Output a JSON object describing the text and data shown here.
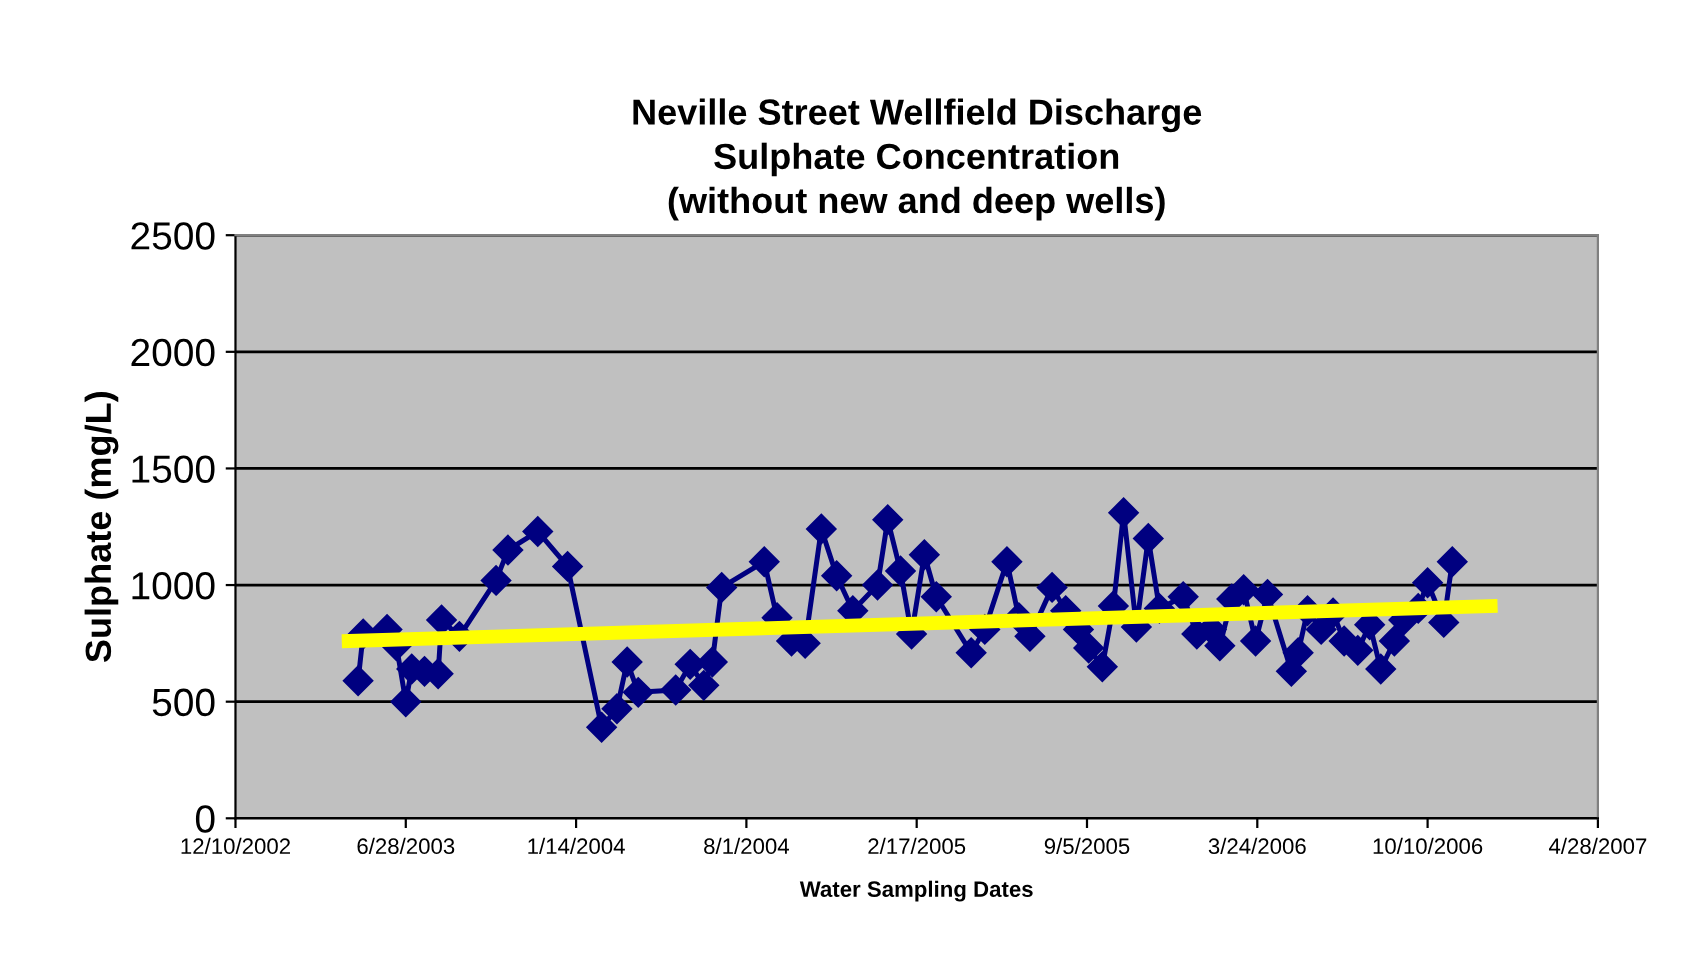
{
  "chart_data": {
    "type": "line",
    "title": "Neville Street Wellfield Discharge\nSulphate Concentration\n(without new and deep wells)",
    "xlabel": "Water Sampling Dates",
    "ylabel": "Sulphate (mg/L)",
    "xlim": [
      "2002-12-10",
      "2007-04-28"
    ],
    "xticks": [
      {
        "value": "2002-12-10",
        "label": "12/10/2002"
      },
      {
        "value": "2003-06-28",
        "label": "6/28/2003"
      },
      {
        "value": "2004-01-14",
        "label": "1/14/2004"
      },
      {
        "value": "2004-08-01",
        "label": "8/1/2004"
      },
      {
        "value": "2005-02-17",
        "label": "2/17/2005"
      },
      {
        "value": "2005-09-05",
        "label": "9/5/2005"
      },
      {
        "value": "2006-03-24",
        "label": "3/24/2006"
      },
      {
        "value": "2006-10-10",
        "label": "10/10/2006"
      },
      {
        "value": "2007-04-28",
        "label": "4/28/2007"
      }
    ],
    "ylim": [
      0,
      2500
    ],
    "yticks": [
      0,
      500,
      1000,
      1500,
      2000,
      2500
    ],
    "grid": "y",
    "legend": false,
    "series": [
      {
        "color": "#000080",
        "marker": "diamond",
        "line_style": "solid",
        "x": [
          "2003-05-03",
          "2003-05-09",
          "2003-06-06",
          "2003-06-17",
          "2003-06-28",
          "2003-07-05",
          "2003-07-20",
          "2003-08-05",
          "2003-08-09",
          "2003-08-30",
          "2003-10-12",
          "2003-10-26",
          "2003-11-30",
          "2004-01-04",
          "2004-02-13",
          "2004-03-02",
          "2004-03-14",
          "2004-03-27",
          "2004-05-10",
          "2004-05-27",
          "2004-06-12",
          "2004-06-22",
          "2004-07-03",
          "2004-08-22",
          "2004-09-06",
          "2004-09-23",
          "2004-10-09",
          "2004-10-28",
          "2004-11-15",
          "2004-12-04",
          "2005-01-02",
          "2005-01-14",
          "2005-01-29",
          "2005-02-11",
          "2005-02-26",
          "2005-03-12",
          "2005-04-22",
          "2005-05-08",
          "2005-06-03",
          "2005-06-17",
          "2005-06-30",
          "2005-07-26",
          "2005-08-11",
          "2005-08-26",
          "2005-09-07",
          "2005-09-23",
          "2005-10-06",
          "2005-10-18",
          "2005-11-02",
          "2005-11-16",
          "2005-11-29",
          "2005-12-27",
          "2006-01-12",
          "2006-01-29",
          "2006-02-08",
          "2006-02-22",
          "2006-03-08",
          "2006-03-22",
          "2006-04-05",
          "2006-05-03",
          "2006-05-11",
          "2006-05-22",
          "2006-06-07",
          "2006-06-21",
          "2006-07-04",
          "2006-07-20",
          "2006-08-03",
          "2006-08-16",
          "2006-09-01",
          "2006-09-12",
          "2006-09-29",
          "2006-10-10",
          "2006-10-29",
          "2006-11-08"
        ],
        "values": [
          590,
          790,
          810,
          740,
          500,
          640,
          630,
          620,
          850,
          780,
          1020,
          1150,
          1230,
          1080,
          390,
          470,
          670,
          540,
          550,
          660,
          570,
          670,
          990,
          1100,
          860,
          760,
          750,
          1240,
          1040,
          890,
          1000,
          1280,
          1060,
          790,
          1130,
          950,
          710,
          810,
          1100,
          860,
          780,
          990,
          890,
          810,
          730,
          650,
          910,
          1310,
          820,
          1200,
          900,
          950,
          790,
          810,
          740,
          940,
          980,
          760,
          960,
          630,
          710,
          890,
          810,
          880,
          760,
          720,
          830,
          640,
          760,
          850,
          900,
          1010,
          840,
          1100
        ]
      },
      {
        "color": "#ffff00",
        "marker": "none",
        "line_style": "solid",
        "x": [
          "2003-04-22",
          "2006-12-23"
        ],
        "values": [
          760,
          910
        ]
      }
    ]
  }
}
